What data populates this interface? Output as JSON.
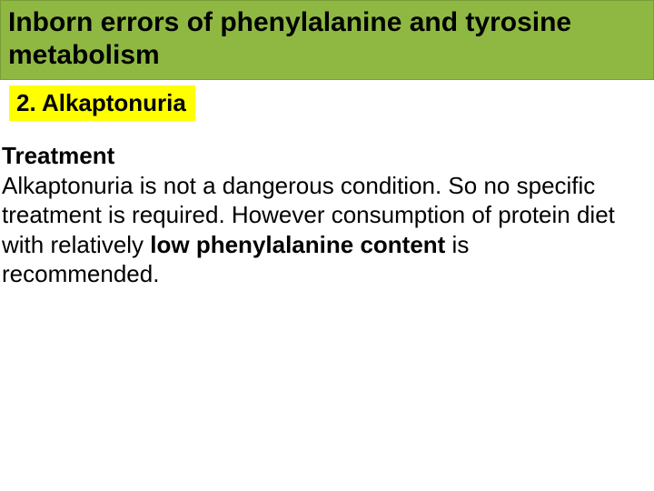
{
  "slide": {
    "title": "Inborn errors of phenylalanine and tyrosine\n metabolism",
    "subtitle": "2. Alkaptonuria",
    "body": {
      "heading": "Treatment",
      "text_before_bold": "Alkaptonuria is not a dangerous condition. So no specific treatment is required. However consumption of protein diet with relatively ",
      "bold_phrase": "low phenylalanine content",
      "text_after_bold": " is\n recommended."
    },
    "colors": {
      "title_bg": "#8fb842",
      "subtitle_bg": "#ffff00",
      "page_bg": "#ffffff",
      "text": "#000000"
    },
    "typography": {
      "title_fontsize": 30,
      "subtitle_fontsize": 26,
      "body_fontsize": 26,
      "font_family": "Arial"
    }
  }
}
